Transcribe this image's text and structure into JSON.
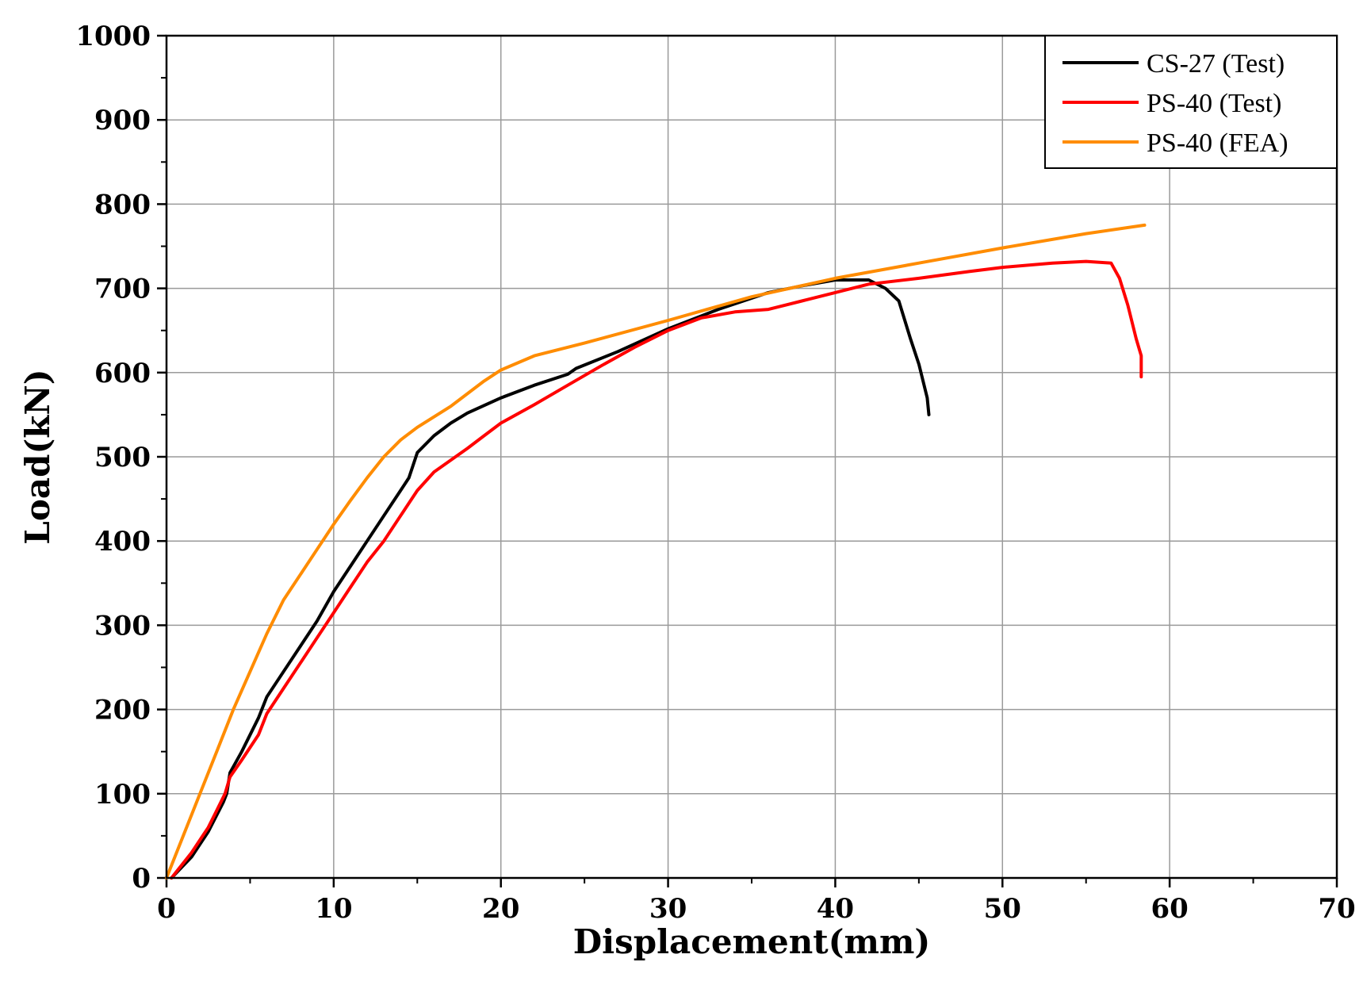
{
  "chart_data": {
    "type": "line",
    "title": "",
    "xlabel": "Displacement(mm)",
    "ylabel": "Load(kN)",
    "xlim": [
      0,
      70
    ],
    "ylim": [
      0,
      1000
    ],
    "x_ticks": [
      "0",
      "10",
      "20",
      "30",
      "40",
      "50",
      "60",
      "70"
    ],
    "y_ticks": [
      "0",
      "100",
      "200",
      "300",
      "400",
      "500",
      "600",
      "700",
      "800",
      "900",
      "1000"
    ],
    "grid": true,
    "legend_position": "top-right",
    "series": [
      {
        "name": "CS-27 (Test)",
        "color": "#000000",
        "points": [
          [
            0.3,
            0
          ],
          [
            1.5,
            25
          ],
          [
            2.5,
            55
          ],
          [
            3.4,
            90
          ],
          [
            3.6,
            100
          ],
          [
            3.8,
            125
          ],
          [
            4.5,
            150
          ],
          [
            5.5,
            190
          ],
          [
            6.0,
            215
          ],
          [
            7.0,
            245
          ],
          [
            8.0,
            275
          ],
          [
            9.0,
            305
          ],
          [
            10.0,
            340
          ],
          [
            11.0,
            370
          ],
          [
            12.0,
            400
          ],
          [
            13.0,
            430
          ],
          [
            14.0,
            460
          ],
          [
            14.5,
            475
          ],
          [
            15.0,
            505
          ],
          [
            16.0,
            525
          ],
          [
            17.0,
            540
          ],
          [
            18.0,
            552
          ],
          [
            20.0,
            570
          ],
          [
            22.0,
            585
          ],
          [
            24.0,
            598
          ],
          [
            24.5,
            605
          ],
          [
            27.0,
            625
          ],
          [
            30.0,
            652
          ],
          [
            33.0,
            675
          ],
          [
            36.0,
            695
          ],
          [
            38.0,
            703
          ],
          [
            40.0,
            710
          ],
          [
            42.0,
            710
          ],
          [
            43.0,
            700
          ],
          [
            43.8,
            685
          ],
          [
            44.5,
            640
          ],
          [
            45.0,
            610
          ],
          [
            45.5,
            570
          ],
          [
            45.6,
            550
          ]
        ]
      },
      {
        "name": "PS-40 (Test)",
        "color": "#ff0000",
        "points": [
          [
            0.3,
            0
          ],
          [
            1.5,
            30
          ],
          [
            2.5,
            60
          ],
          [
            3.0,
            80
          ],
          [
            3.5,
            100
          ],
          [
            3.8,
            120
          ],
          [
            4.5,
            140
          ],
          [
            5.5,
            170
          ],
          [
            6.0,
            195
          ],
          [
            7.0,
            225
          ],
          [
            8.0,
            255
          ],
          [
            9.0,
            285
          ],
          [
            10.0,
            315
          ],
          [
            11.0,
            345
          ],
          [
            12.0,
            375
          ],
          [
            13.0,
            400
          ],
          [
            14.0,
            430
          ],
          [
            15.0,
            460
          ],
          [
            16.0,
            482
          ],
          [
            18.0,
            510
          ],
          [
            19.0,
            525
          ],
          [
            20.0,
            540
          ],
          [
            22.0,
            562
          ],
          [
            24.0,
            585
          ],
          [
            26.0,
            608
          ],
          [
            28.0,
            630
          ],
          [
            30.0,
            650
          ],
          [
            32.0,
            665
          ],
          [
            34.0,
            672
          ],
          [
            36.0,
            675
          ],
          [
            38.0,
            685
          ],
          [
            40.0,
            695
          ],
          [
            42.0,
            705
          ],
          [
            45.0,
            712
          ],
          [
            48.0,
            720
          ],
          [
            50.0,
            725
          ],
          [
            53.0,
            730
          ],
          [
            55.0,
            732
          ],
          [
            56.5,
            730
          ],
          [
            57.0,
            712
          ],
          [
            57.5,
            680
          ],
          [
            58.0,
            640
          ],
          [
            58.3,
            620
          ],
          [
            58.3,
            595
          ]
        ]
      },
      {
        "name": "PS-40 (FEA)",
        "color": "#ff8c00",
        "points": [
          [
            0,
            0
          ],
          [
            1,
            50
          ],
          [
            2,
            100
          ],
          [
            3,
            150
          ],
          [
            4,
            200
          ],
          [
            5,
            245
          ],
          [
            6,
            290
          ],
          [
            7,
            330
          ],
          [
            8,
            360
          ],
          [
            9,
            390
          ],
          [
            10,
            420
          ],
          [
            11,
            448
          ],
          [
            12,
            475
          ],
          [
            13,
            500
          ],
          [
            14,
            520
          ],
          [
            15,
            535
          ],
          [
            17,
            560
          ],
          [
            19,
            590
          ],
          [
            20,
            603
          ],
          [
            22,
            620
          ],
          [
            25,
            635
          ],
          [
            30,
            662
          ],
          [
            35,
            690
          ],
          [
            40,
            712
          ],
          [
            45,
            730
          ],
          [
            50,
            748
          ],
          [
            55,
            765
          ],
          [
            58.5,
            775
          ]
        ]
      }
    ]
  }
}
